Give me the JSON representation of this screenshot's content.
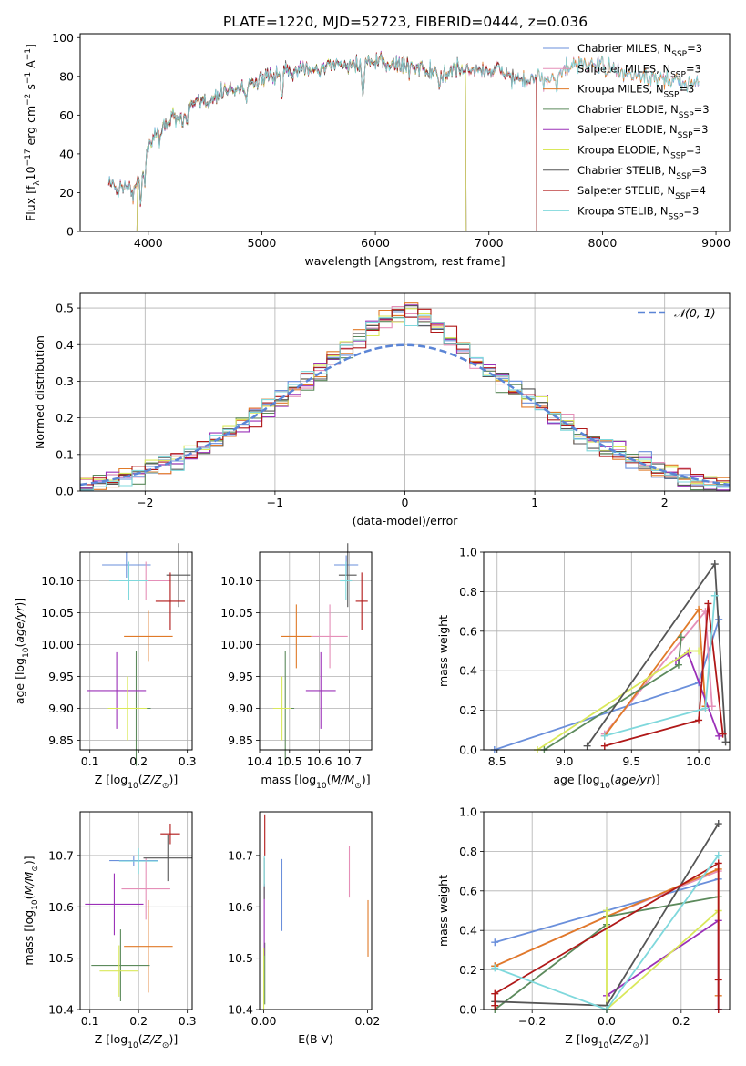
{
  "figure_title": "PLATE=1220, MJD=52723, FIBERID=0444, z=0.036",
  "colors": {
    "Chabrier MILES": "#6a8fdb",
    "Salpeter MILES": "#e58fb8",
    "Kroupa MILES": "#e07a28",
    "Chabrier ELODIE": "#5c8a5c",
    "Salpeter ELODIE": "#9b30b8",
    "Kroupa ELODIE": "#d9e85a",
    "Chabrier STELIB": "#555555",
    "Salpeter STELIB": "#b01818",
    "Kroupa STELIB": "#7fd8dc",
    "normal_curve": "#5b85d6",
    "grid": "#b0b0b0"
  },
  "chart_data": [
    {
      "id": "spectrum",
      "type": "line",
      "xlabel": "wavelength [Angstrom, rest frame]",
      "ylabel": "Flux [f_λ 10^-17 erg cm^-2 s^-1 A^-1]",
      "xlim": [
        3400,
        9120
      ],
      "ylim": [
        0,
        102
      ],
      "xticks": [
        4000,
        5000,
        6000,
        7000,
        8000,
        9000
      ],
      "yticks": [
        0,
        20,
        40,
        60,
        80,
        100
      ],
      "grid": false,
      "legend": "top-right",
      "legend_entries": [
        {
          "name": "Chabrier MILES",
          "nssp": "3"
        },
        {
          "name": "Salpeter MILES",
          "nssp": "3"
        },
        {
          "name": "Kroupa MILES",
          "nssp": "3"
        },
        {
          "name": "Chabrier ELODIE",
          "nssp": "3"
        },
        {
          "name": "Salpeter ELODIE",
          "nssp": "3"
        },
        {
          "name": "Kroupa ELODIE",
          "nssp": "3"
        },
        {
          "name": "Chabrier STELIB",
          "nssp": "3"
        },
        {
          "name": "Salpeter STELIB",
          "nssp": "4"
        },
        {
          "name": "Kroupa STELIB",
          "nssp": "3"
        }
      ],
      "envelope": {
        "x": [
          3650,
          3700,
          3800,
          3850,
          3900,
          3950,
          4000,
          4100,
          4200,
          4300,
          4400,
          4500,
          4600,
          4700,
          4800,
          4900,
          5000,
          5100,
          5200,
          5300,
          5400,
          5500,
          5600,
          5800,
          6000,
          6200,
          6400,
          6560,
          6700,
          6900,
          7100,
          7300,
          7500,
          7700,
          7900,
          8100,
          8300,
          8500,
          8700,
          8850
        ],
        "y": [
          27,
          22,
          24,
          20,
          24,
          36,
          45,
          53,
          58,
          62,
          65,
          67,
          70,
          73,
          74,
          77,
          78,
          80,
          82,
          84,
          85,
          83,
          86,
          86,
          87,
          86,
          85,
          80,
          84,
          83,
          83,
          77,
          79,
          84,
          87,
          83,
          80,
          78,
          77,
          77
        ]
      },
      "series_ranges": {
        "Chabrier MILES": [
          3650,
          8850
        ],
        "Salpeter MILES": [
          3650,
          8850
        ],
        "Kroupa MILES": [
          3650,
          8850
        ],
        "Chabrier ELODIE": [
          3900,
          6800
        ],
        "Salpeter ELODIE": [
          3900,
          6800
        ],
        "Kroupa ELODIE": [
          3900,
          6800
        ],
        "Chabrier STELIB": [
          3650,
          7420
        ],
        "Salpeter STELIB": [
          3650,
          7420
        ],
        "Kroupa STELIB": [
          3650,
          8850
        ]
      }
    },
    {
      "id": "residuals",
      "type": "histogram",
      "xlabel": "(data-model)/error",
      "ylabel": "Normed distribution",
      "xlim": [
        -2.5,
        2.5
      ],
      "ylim": [
        0,
        0.54
      ],
      "xticks": [
        -2,
        -1,
        0,
        1,
        2
      ],
      "yticks": [
        0.0,
        0.1,
        0.2,
        0.3,
        0.4,
        0.5
      ],
      "grid": true,
      "legend": "top-right",
      "normal_label": "𝒩(0, 1)",
      "bin_width": 0.1
    },
    {
      "id": "age_vs_Z",
      "type": "errorbar",
      "xlabel": "Z [log10(Z/Z⊙)]",
      "ylabel": "age  [log10(age/yr)]",
      "xlim": [
        0.08,
        0.31
      ],
      "ylim": [
        9.835,
        10.145
      ],
      "xticks": [
        0.1,
        0.2,
        0.3
      ],
      "yticks": [
        9.85,
        9.9,
        9.95,
        10.0,
        10.05,
        10.1
      ],
      "grid": true,
      "points": [
        {
          "series": "Chabrier MILES",
          "x": 0.175,
          "y": 10.125,
          "xerr": 0.05,
          "yerr": 0.02
        },
        {
          "series": "Salpeter MILES",
          "x": 0.215,
          "y": 10.1,
          "xerr": 0.05,
          "yerr": 0.03
        },
        {
          "series": "Kroupa MILES",
          "x": 0.22,
          "y": 10.013,
          "xerr": 0.05,
          "yerr": 0.04
        },
        {
          "series": "Chabrier ELODIE",
          "x": 0.195,
          "y": 9.9,
          "xerr": 0.03,
          "yerr": 0.09
        },
        {
          "series": "Salpeter ELODIE",
          "x": 0.155,
          "y": 9.928,
          "xerr": 0.06,
          "yerr": 0.06
        },
        {
          "series": "Kroupa ELODIE",
          "x": 0.177,
          "y": 9.9,
          "xerr": 0.04,
          "yerr": 0.05
        },
        {
          "series": "Chabrier STELIB",
          "x": 0.282,
          "y": 10.109,
          "xerr": 0.025,
          "yerr": 0.05
        },
        {
          "series": "Salpeter STELIB",
          "x": 0.265,
          "y": 10.068,
          "xerr": 0.03,
          "yerr": 0.045
        },
        {
          "series": "Kroupa STELIB",
          "x": 0.18,
          "y": 10.1,
          "xerr": 0.04,
          "yerr": 0.03
        }
      ]
    },
    {
      "id": "age_vs_mass",
      "type": "errorbar",
      "xlabel": "mass [log10(M/M⊙)]",
      "ylabel": "",
      "xlim": [
        10.4,
        10.775
      ],
      "ylim": [
        9.835,
        10.145
      ],
      "xticks": [
        10.4,
        10.5,
        10.6,
        10.7
      ],
      "yticks": [
        9.85,
        9.9,
        9.95,
        10.0,
        10.05,
        10.1
      ],
      "grid": true,
      "points": [
        {
          "series": "Chabrier MILES",
          "x": 10.69,
          "y": 10.125,
          "xerr": 0.04,
          "yerr": 0.015
        },
        {
          "series": "Salpeter MILES",
          "x": 10.635,
          "y": 10.013,
          "xerr": 0.06,
          "yerr": 0.05
        },
        {
          "series": "Kroupa MILES",
          "x": 10.523,
          "y": 10.013,
          "xerr": 0.05,
          "yerr": 0.05
        },
        {
          "series": "Chabrier ELODIE",
          "x": 10.486,
          "y": 9.9,
          "xerr": 0.03,
          "yerr": 0.09
        },
        {
          "series": "Salpeter ELODIE",
          "x": 10.605,
          "y": 9.928,
          "xerr": 0.05,
          "yerr": 0.06
        },
        {
          "series": "Kroupa ELODIE",
          "x": 10.475,
          "y": 9.9,
          "xerr": 0.03,
          "yerr": 0.05
        },
        {
          "series": "Chabrier STELIB",
          "x": 10.695,
          "y": 10.109,
          "xerr": 0.03,
          "yerr": 0.05
        },
        {
          "series": "Salpeter STELIB",
          "x": 10.742,
          "y": 10.068,
          "xerr": 0.02,
          "yerr": 0.045
        },
        {
          "series": "Kroupa STELIB",
          "x": 10.689,
          "y": 10.1,
          "xerr": 0.02,
          "yerr": 0.03
        }
      ]
    },
    {
      "id": "weight_vs_age",
      "type": "line",
      "xlabel": "age  [log10(age/yr)]",
      "ylabel": "mass weight",
      "xlim": [
        8.4,
        10.23
      ],
      "ylim": [
        0,
        1.0
      ],
      "xticks": [
        8.5,
        9.0,
        9.5,
        10.0
      ],
      "yticks": [
        0.0,
        0.2,
        0.4,
        0.6,
        0.8,
        1.0
      ],
      "grid": true,
      "series": [
        {
          "name": "Chabrier MILES",
          "x": [
            8.48,
            10.0,
            10.15
          ],
          "y": [
            0.0,
            0.34,
            0.66
          ]
        },
        {
          "name": "Salpeter MILES",
          "x": [
            9.3,
            10.05,
            10.1
          ],
          "y": [
            0.08,
            0.7,
            0.22
          ]
        },
        {
          "name": "Kroupa MILES",
          "x": [
            9.3,
            10.0,
            10.05
          ],
          "y": [
            0.07,
            0.71,
            0.22
          ]
        },
        {
          "name": "Chabrier ELODIE",
          "x": [
            8.85,
            9.85,
            9.87
          ],
          "y": [
            0.0,
            0.43,
            0.57
          ]
        },
        {
          "name": "Salpeter ELODIE",
          "x": [
            9.83,
            9.92,
            10.15
          ],
          "y": [
            0.45,
            0.49,
            0.07
          ]
        },
        {
          "name": "Kroupa ELODIE",
          "x": [
            8.8,
            9.93,
            10.0
          ],
          "y": [
            0.0,
            0.5,
            0.5
          ]
        },
        {
          "name": "Chabrier STELIB",
          "x": [
            9.17,
            10.12,
            10.2
          ],
          "y": [
            0.02,
            0.94,
            0.04
          ]
        },
        {
          "name": "Salpeter STELIB",
          "x": [
            9.3,
            10.0,
            10.07,
            10.18
          ],
          "y": [
            0.02,
            0.15,
            0.74,
            0.08
          ]
        },
        {
          "name": "Kroupa STELIB",
          "x": [
            9.3,
            10.05,
            10.12
          ],
          "y": [
            0.07,
            0.21,
            0.78
          ]
        }
      ]
    },
    {
      "id": "mass_vs_Z",
      "type": "errorbar",
      "xlabel": "Z [log10(Z/Z⊙)]",
      "ylabel": "mass [log10(M/M⊙)]",
      "xlim": [
        0.08,
        0.31
      ],
      "ylim": [
        10.4,
        10.785
      ],
      "xticks": [
        0.1,
        0.2,
        0.3
      ],
      "yticks": [
        10.4,
        10.5,
        10.6,
        10.7
      ],
      "grid": true,
      "points": [
        {
          "series": "Chabrier MILES",
          "x": 0.19,
          "y": 10.69,
          "xerr": 0.05,
          "yerr": 0.01
        },
        {
          "series": "Salpeter MILES",
          "x": 0.215,
          "y": 10.635,
          "xerr": 0.05,
          "yerr": 0.06
        },
        {
          "series": "Kroupa MILES",
          "x": 0.22,
          "y": 10.523,
          "xerr": 0.05,
          "yerr": 0.09
        },
        {
          "series": "Chabrier ELODIE",
          "x": 0.163,
          "y": 10.486,
          "xerr": 0.06,
          "yerr": 0.07
        },
        {
          "series": "Salpeter ELODIE",
          "x": 0.15,
          "y": 10.605,
          "xerr": 0.06,
          "yerr": 0.06
        },
        {
          "series": "Kroupa ELODIE",
          "x": 0.16,
          "y": 10.475,
          "xerr": 0.04,
          "yerr": 0.05
        },
        {
          "series": "Chabrier STELIB",
          "x": 0.26,
          "y": 10.695,
          "xerr": 0.05,
          "yerr": 0.045
        },
        {
          "series": "Salpeter STELIB",
          "x": 0.265,
          "y": 10.742,
          "xerr": 0.02,
          "yerr": 0.02
        },
        {
          "series": "Kroupa STELIB",
          "x": 0.2,
          "y": 10.689,
          "xerr": 0.04,
          "yerr": 0.025
        }
      ]
    },
    {
      "id": "mass_vs_EBV",
      "type": "errorbar",
      "xlabel": "E(B-V)",
      "ylabel": "",
      "xlim": [
        -0.0008,
        0.0208
      ],
      "ylim": [
        10.4,
        10.785
      ],
      "xticks": [
        0.0,
        0.02
      ],
      "yticks": [
        10.4,
        10.5,
        10.6,
        10.7
      ],
      "grid": false,
      "points": [
        {
          "series": "Chabrier MILES",
          "x": 0.0035,
          "y": 10.623,
          "xerr": 0.0,
          "yerr": 0.07
        },
        {
          "series": "Salpeter MILES",
          "x": 0.0165,
          "y": 10.668,
          "xerr": 0.0,
          "yerr": 0.05
        },
        {
          "series": "Kroupa MILES",
          "x": 0.0201,
          "y": 10.558,
          "xerr": 0.0,
          "yerr": 0.055
        },
        {
          "series": "Chabrier ELODIE",
          "x": 0.0002,
          "y": 10.47,
          "xerr": 0.0,
          "yerr": 0.06
        },
        {
          "series": "Salpeter ELODIE",
          "x": 0.0001,
          "y": 10.575,
          "xerr": 0.0,
          "yerr": 0.07
        },
        {
          "series": "Kroupa ELODIE",
          "x": 0.0,
          "y": 10.46,
          "xerr": 0.0,
          "yerr": 0.06
        },
        {
          "series": "Chabrier STELIB",
          "x": 0.0001,
          "y": 10.655,
          "xerr": 0.0,
          "yerr": 0.04
        },
        {
          "series": "Salpeter STELIB",
          "x": 0.0002,
          "y": 10.74,
          "xerr": 0.0,
          "yerr": 0.04
        },
        {
          "series": "Kroupa STELIB",
          "x": 0.0001,
          "y": 10.67,
          "xerr": 0.0,
          "yerr": 0.03
        }
      ]
    },
    {
      "id": "weight_vs_Z",
      "type": "line",
      "xlabel": "Z [log10(Z/Z⊙)]",
      "ylabel": "mass weight",
      "xlim": [
        -0.33,
        0.33
      ],
      "ylim": [
        0,
        1.0
      ],
      "xticks": [
        -0.2,
        0.0,
        0.2
      ],
      "yticks": [
        0.0,
        0.2,
        0.4,
        0.6,
        0.8,
        1.0
      ],
      "grid": true,
      "series": [
        {
          "name": "Chabrier MILES",
          "x": [
            -0.3,
            0.0,
            0.3
          ],
          "y": [
            0.34,
            0.5,
            0.66
          ]
        },
        {
          "name": "Salpeter MILES",
          "x": [
            -0.3,
            0.0,
            0.3
          ],
          "y": [
            0.22,
            0.47,
            0.7
          ]
        },
        {
          "name": "Kroupa MILES",
          "x": [
            -0.3,
            0.0,
            0.3,
            0.3
          ],
          "y": [
            0.22,
            0.47,
            0.71,
            0.07
          ]
        },
        {
          "name": "Chabrier ELODIE",
          "x": [
            -0.3,
            0.0,
            0.0,
            0.3
          ],
          "y": [
            0.0,
            0.43,
            0.47,
            0.57
          ]
        },
        {
          "name": "Salpeter ELODIE",
          "x": [
            0.0,
            0.3,
            0.3
          ],
          "y": [
            0.07,
            0.45,
            0.0
          ]
        },
        {
          "name": "Kroupa ELODIE",
          "x": [
            0.0,
            0.0,
            0.3
          ],
          "y": [
            0.5,
            0.0,
            0.5
          ]
        },
        {
          "name": "Chabrier STELIB",
          "x": [
            -0.3,
            0.0,
            0.3
          ],
          "y": [
            0.04,
            0.02,
            0.94
          ]
        },
        {
          "name": "Salpeter STELIB",
          "x": [
            -0.3,
            -0.3,
            0.3,
            0.3,
            0.3
          ],
          "y": [
            0.02,
            0.08,
            0.74,
            0.15,
            0.0
          ]
        },
        {
          "name": "Kroupa STELIB",
          "x": [
            -0.3,
            0.0,
            0.3
          ],
          "y": [
            0.21,
            0.0,
            0.78
          ]
        }
      ]
    }
  ]
}
